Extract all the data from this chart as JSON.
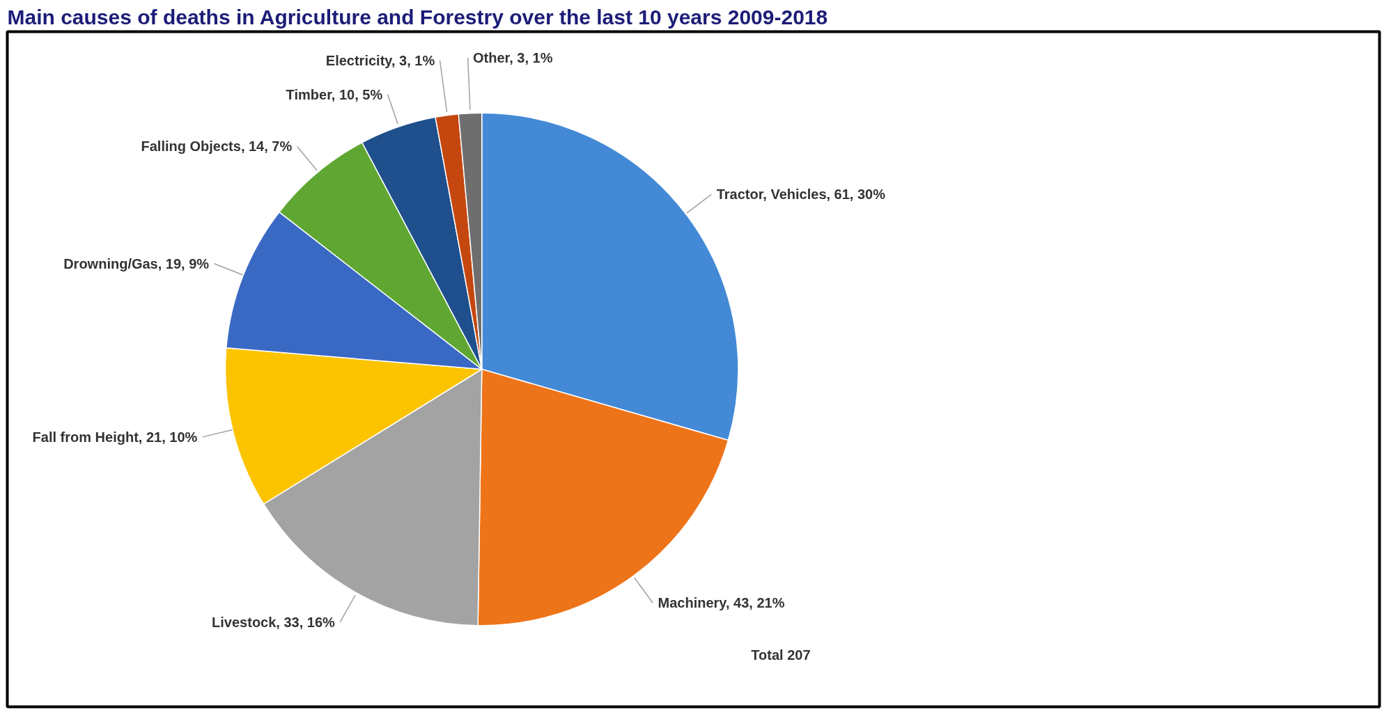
{
  "chart_data": {
    "type": "pie",
    "title": "Main causes of deaths in Agriculture and Forestry over the last 10 years 2009-2018",
    "categories": [
      "Tractor, Vehicles",
      "Machinery",
      "Livestock",
      "Fall from Height",
      "Drowning/Gas",
      "Falling Objects",
      "Timber",
      "Electricity",
      "Other"
    ],
    "values": [
      61,
      43,
      33,
      21,
      19,
      14,
      10,
      3,
      3
    ],
    "value_labels": [
      "61, 30%",
      "43, 21%",
      "33, 16%",
      "21, 10%",
      "19, 9%",
      "14, 7%",
      "10, 5%",
      "3, 1%",
      "3, 1%"
    ],
    "colors": [
      "#4389d6",
      "#ee7419",
      "#a3a3a3",
      "#fcc400",
      "#3a69c4",
      "#5fa732",
      "#1f4f8c",
      "#c4470f",
      "#6e6e6e"
    ],
    "annotations": [
      "Total 207"
    ]
  }
}
